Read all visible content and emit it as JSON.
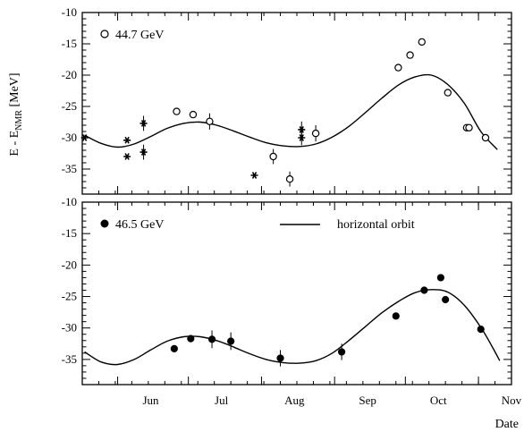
{
  "chart_data": {
    "type": "scatter",
    "ylabel_main": "E - E",
    "ylabel_sub": "NMR",
    "ylabel_unit": " [MeV]",
    "xlabel": "Date",
    "x_ticks": [
      "Jun",
      "Jul",
      "Aug",
      "Sep",
      "Oct",
      "Nov"
    ],
    "panels": [
      {
        "id": "top",
        "ylim": [
          -39,
          -10
        ],
        "y_ticks": [
          "-10",
          "-15",
          "-20",
          "-25",
          "-30",
          "-35"
        ],
        "legend": [
          {
            "label": "44.7 GeV",
            "marker": "open-circle"
          }
        ],
        "series": [
          {
            "name": "44.7 GeV",
            "marker": "open-circle",
            "points": [
              {
                "x": "Jun 26",
                "y": -25.8
              },
              {
                "x": "Jul 3",
                "y": -26.3
              },
              {
                "x": "Jul 10",
                "y": -27.4,
                "err": 1.3
              },
              {
                "x": "Aug 6",
                "y": -33.0,
                "err": 1.2
              },
              {
                "x": "Aug 13",
                "y": -36.6,
                "err": 1.2
              },
              {
                "x": "Aug 24",
                "y": -29.3,
                "err": 1.3
              },
              {
                "x": "Sep 28",
                "y": -18.8
              },
              {
                "x": "Oct 3",
                "y": -16.8
              },
              {
                "x": "Oct 8",
                "y": -14.7
              },
              {
                "x": "Oct 19",
                "y": -22.8
              },
              {
                "x": "Oct 27",
                "y": -28.4
              },
              {
                "x": "Oct 28",
                "y": -28.4
              },
              {
                "x": "Nov 4",
                "y": -30.0
              }
            ]
          },
          {
            "name": "",
            "marker": "star",
            "points": [
              {
                "x": "May 18",
                "y": -30.0
              },
              {
                "x": "Jun 5",
                "y": -33.0
              },
              {
                "x": "Jun 5",
                "y": -30.4
              },
              {
                "x": "Jun 12",
                "y": -27.7,
                "err": 1.2
              },
              {
                "x": "Jun 12",
                "y": -32.3,
                "err": 1.2
              },
              {
                "x": "Jul 29",
                "y": -36.0
              },
              {
                "x": "Aug 18",
                "y": -28.7,
                "err": 1.3
              },
              {
                "x": "Aug 18",
                "y": -30.0,
                "err": 1.2
              }
            ]
          }
        ],
        "curve": {
          "x": [
            "May 18",
            "May 25",
            "Jun 1",
            "Jun 8",
            "Jun 15",
            "Jun 22",
            "Jun 29",
            "Jul 6",
            "Jul 13",
            "Jul 20",
            "Jul 27",
            "Aug 3",
            "Aug 10",
            "Aug 17",
            "Aug 24",
            "Aug 31",
            "Sep 7",
            "Sep 14",
            "Sep 21",
            "Sep 28",
            "Oct 5",
            "Oct 12",
            "Oct 19",
            "Oct 26",
            "Nov 2",
            "Nov 9"
          ],
          "y": [
            -29.6,
            -30.9,
            -31.5,
            -31.0,
            -29.8,
            -28.5,
            -27.7,
            -27.5,
            -28.0,
            -28.9,
            -29.9,
            -30.8,
            -31.3,
            -31.4,
            -31.0,
            -29.9,
            -28.2,
            -26.0,
            -23.7,
            -21.6,
            -20.3,
            -20.0,
            -21.5,
            -24.5,
            -29.0,
            -31.9
          ]
        }
      },
      {
        "id": "bottom",
        "ylim": [
          -39,
          -10
        ],
        "y_ticks": [
          "-10",
          "-15",
          "-20",
          "-25",
          "-30",
          "-35"
        ],
        "legend": [
          {
            "label": "46.5 GeV",
            "marker": "filled-circle"
          },
          {
            "label": "horizontal orbit",
            "marker": "line"
          }
        ],
        "series": [
          {
            "name": "46.5 GeV",
            "marker": "filled-circle",
            "points": [
              {
                "x": "Jun 25",
                "y": -33.3
              },
              {
                "x": "Jul 2",
                "y": -31.7
              },
              {
                "x": "Jul 11",
                "y": -31.8,
                "err": 1.4
              },
              {
                "x": "Jul 19",
                "y": -32.1,
                "err": 1.4
              },
              {
                "x": "Aug 9",
                "y": -34.8,
                "err": 1.3
              },
              {
                "x": "Sep 4",
                "y": -33.8,
                "err": 1.3
              },
              {
                "x": "Sep 27",
                "y": -28.1
              },
              {
                "x": "Oct 9",
                "y": -24.0
              },
              {
                "x": "Oct 16",
                "y": -22.0
              },
              {
                "x": "Oct 18",
                "y": -25.5
              },
              {
                "x": "Nov 2",
                "y": -30.2
              }
            ]
          }
        ],
        "curve": {
          "name": "horizontal orbit",
          "x": [
            "May 18",
            "May 25",
            "Jun 1",
            "Jun 8",
            "Jun 15",
            "Jun 22",
            "Jun 29",
            "Jul 6",
            "Jul 13",
            "Jul 20",
            "Jul 27",
            "Aug 3",
            "Aug 10",
            "Aug 17",
            "Aug 24",
            "Aug 31",
            "Sep 7",
            "Sep 14",
            "Sep 21",
            "Sep 28",
            "Oct 5",
            "Oct 12",
            "Oct 19",
            "Oct 26",
            "Nov 2",
            "Nov 7",
            "Nov 10"
          ],
          "y": [
            -33.8,
            -35.4,
            -35.8,
            -35.0,
            -33.5,
            -32.1,
            -31.4,
            -31.4,
            -32.0,
            -33.0,
            -34.1,
            -35.0,
            -35.5,
            -35.6,
            -35.2,
            -34.0,
            -32.0,
            -29.8,
            -27.6,
            -25.8,
            -24.4,
            -23.9,
            -24.3,
            -26.4,
            -29.9,
            -33.1,
            -35.2
          ]
        }
      }
    ]
  }
}
